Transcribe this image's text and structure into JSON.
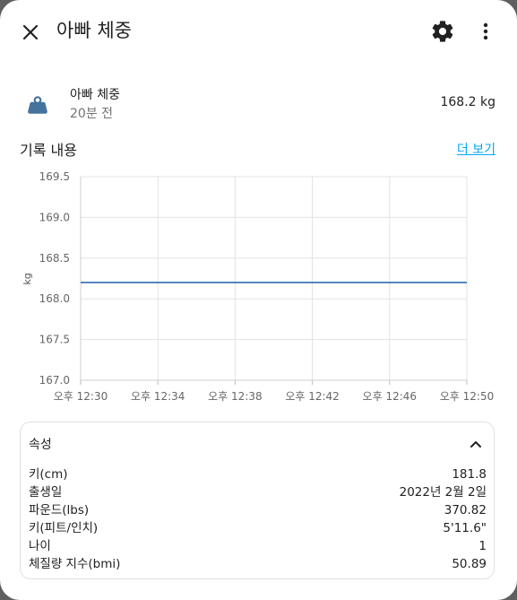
{
  "dialog": {
    "title": "아빠 체중"
  },
  "entity": {
    "name": "아빠 체중",
    "time_ago": "20분 전",
    "value": "168.2 kg",
    "icon": "weight-icon"
  },
  "history": {
    "title": "기록 내용",
    "more_link": "더 보기"
  },
  "chart_data": {
    "type": "line",
    "ylabel": "kg",
    "ylim": [
      167.0,
      169.5
    ],
    "y_ticks": [
      "169.5",
      "169.0",
      "168.5",
      "168.0",
      "167.5",
      "167.0"
    ],
    "x_ticks": [
      "오후 12:30",
      "오후 12:34",
      "오후 12:38",
      "오후 12:42",
      "오후 12:46",
      "오후 12:50"
    ],
    "grid": true,
    "series": [
      {
        "values": [
          168.2,
          168.2
        ],
        "x": [
          "오후 12:30",
          "오후 12:50"
        ],
        "color": "#1f5fa6"
      }
    ]
  },
  "attributes": {
    "title": "속성",
    "rows": [
      {
        "label": "키(cm)",
        "value": "181.8"
      },
      {
        "label": "출생일",
        "value": "2022년 2월 2일"
      },
      {
        "label": "파운드(lbs)",
        "value": "370.82"
      },
      {
        "label": "키(피트/인치)",
        "value": "5'11.6\""
      },
      {
        "label": "나이",
        "value": "1"
      },
      {
        "label": "체질량 지수(bmi)",
        "value": "50.89"
      }
    ]
  },
  "colors": {
    "accent": "#03a9f4",
    "icon": "#44739e",
    "line": "#1f5fa6"
  }
}
